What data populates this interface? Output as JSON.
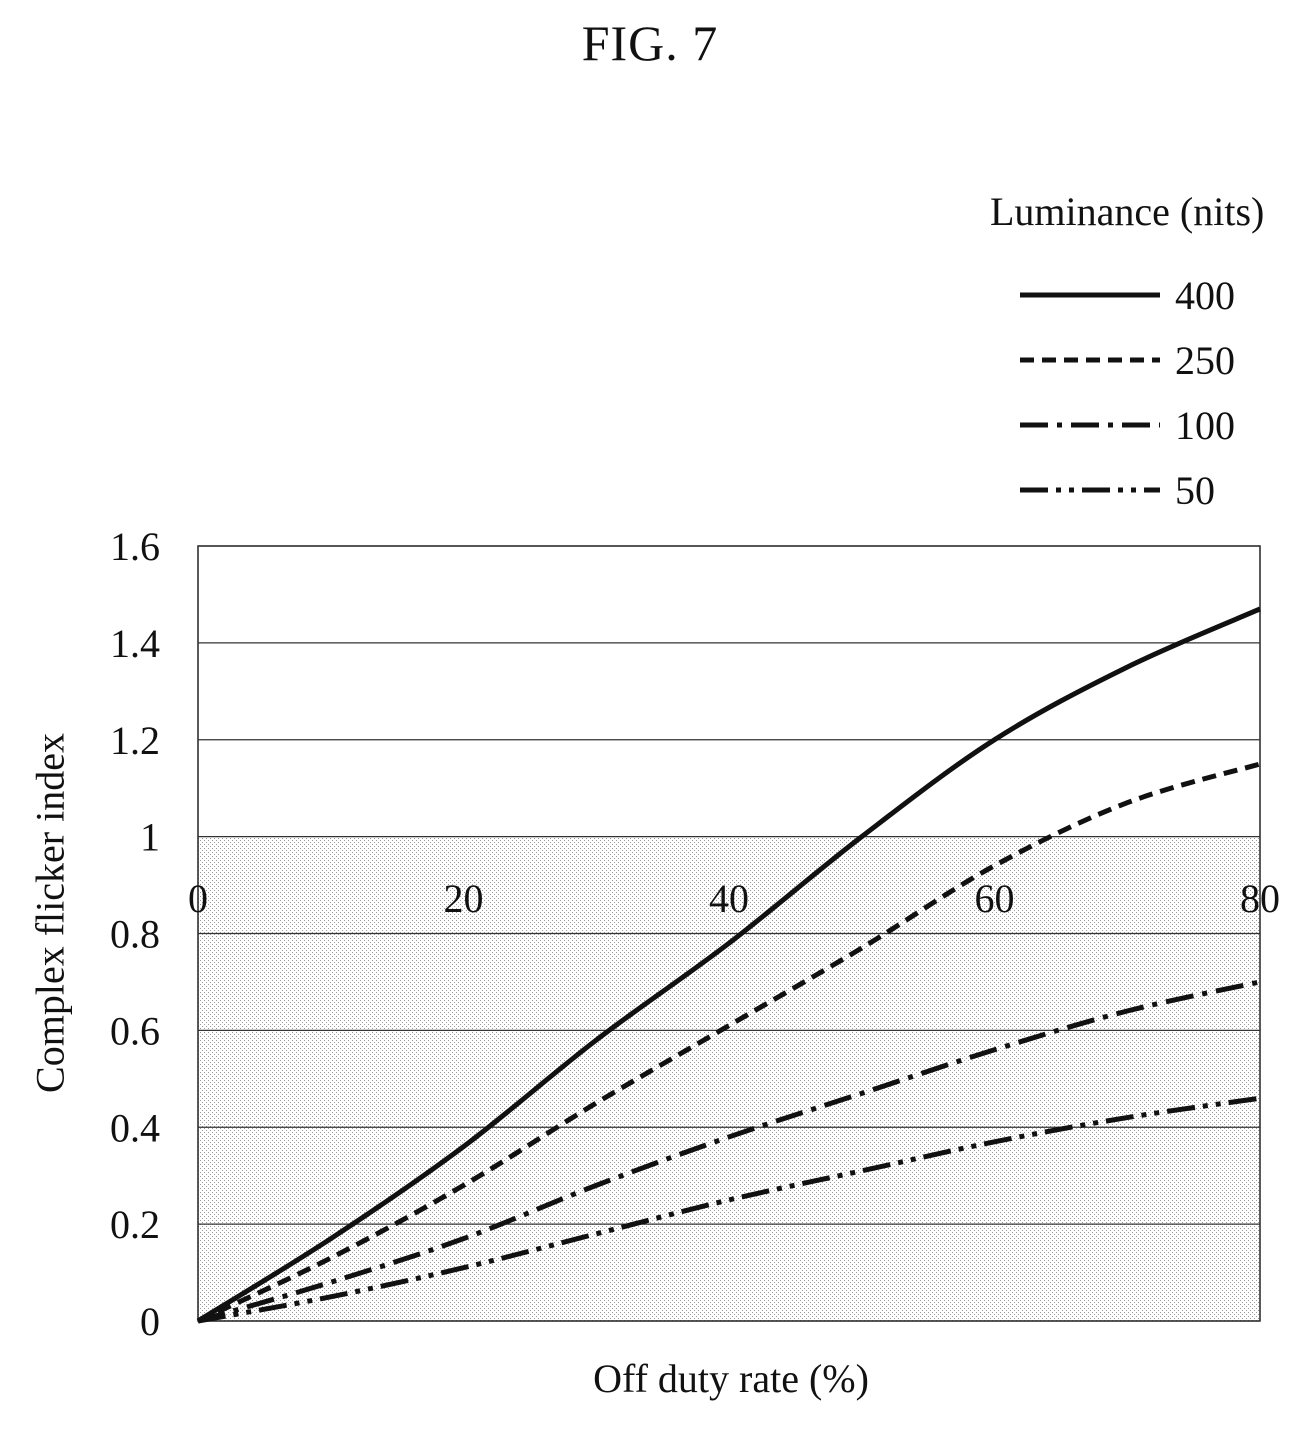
{
  "figure_label": "FIG. 7",
  "chart_data": {
    "type": "line",
    "title": "",
    "xlabel": "Off duty rate (%)",
    "ylabel": "Complex flicker index",
    "xlim": [
      0,
      80
    ],
    "ylim": [
      0,
      1.6
    ],
    "x_ticks": [
      "0",
      "20",
      "40",
      "60",
      "80"
    ],
    "y_ticks": [
      "0",
      "0.2",
      "0.4",
      "0.6",
      "0.8",
      "1",
      "1.2",
      "1.4",
      "1.6"
    ],
    "grid": "horizontal",
    "legend_title": "Luminance (nits)",
    "legend_position": "top-right",
    "x": [
      0,
      10,
      20,
      30,
      40,
      50,
      60,
      70,
      80
    ],
    "series": [
      {
        "name": "400",
        "style": "solid",
        "values": [
          0,
          0.17,
          0.36,
          0.58,
          0.78,
          1.0,
          1.2,
          1.35,
          1.47
        ]
      },
      {
        "name": "250",
        "style": "dashed",
        "values": [
          0,
          0.13,
          0.28,
          0.45,
          0.61,
          0.77,
          0.94,
          1.07,
          1.15
        ]
      },
      {
        "name": "100",
        "style": "dash-dot",
        "values": [
          0,
          0.08,
          0.17,
          0.28,
          0.38,
          0.47,
          0.56,
          0.64,
          0.7
        ]
      },
      {
        "name": "50",
        "style": "dash-dot-dot",
        "values": [
          0,
          0.05,
          0.11,
          0.18,
          0.25,
          0.31,
          0.37,
          0.42,
          0.46
        ]
      }
    ]
  }
}
